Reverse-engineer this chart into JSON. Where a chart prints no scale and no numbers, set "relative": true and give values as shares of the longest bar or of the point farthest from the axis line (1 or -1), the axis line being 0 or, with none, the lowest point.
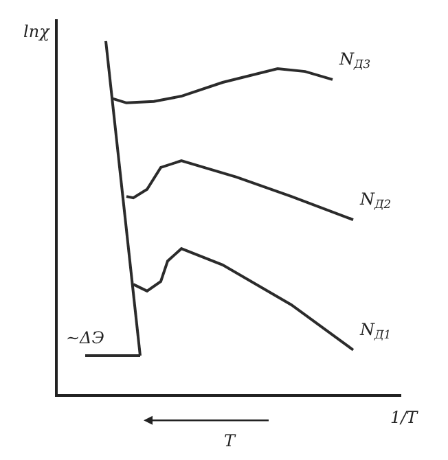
{
  "chart_data": {
    "type": "line",
    "relative": true,
    "xlabel": "1/T",
    "ylabel": "lnχ",
    "legend": false,
    "grid": false,
    "marker": "none",
    "line_style": "solid",
    "categories": [
      null,
      null,
      null,
      null,
      null,
      null,
      null,
      null,
      null,
      null,
      null,
      null,
      null,
      null,
      null,
      null,
      null,
      null,
      null,
      null,
      null,
      null,
      null,
      null,
      null,
      null,
      null,
      null,
      null,
      null,
      null,
      null,
      null,
      null,
      null,
      null,
      null,
      null,
      null,
      null,
      null,
      null,
      null,
      null,
      null,
      null,
      null,
      null,
      null,
      null,
      null
    ],
    "series": [
      {
        "color": "#2b2b2b",
        "values": [
          null,
          null,
          null,
          null,
          null,
          null,
          null,
          1.0,
          null,
          null,
          null,
          null,
          0.109,
          null,
          null,
          null,
          null,
          null,
          null,
          null,
          null,
          null,
          null,
          null,
          null,
          null,
          null,
          null,
          null,
          null,
          null,
          null,
          null,
          null,
          null,
          null,
          null,
          null,
          null,
          null,
          null,
          null,
          null,
          null,
          null,
          null,
          null,
          null,
          null,
          null,
          null
        ]
      },
      {
        "color": "#2b2b2b",
        "values": [
          null,
          null,
          null,
          null,
          0.109,
          null,
          null,
          null,
          null,
          null,
          null,
          null,
          0.109,
          null,
          null,
          null,
          null,
          null,
          null,
          null,
          null,
          null,
          null,
          null,
          null,
          null,
          null,
          null,
          null,
          null,
          null,
          null,
          null,
          null,
          null,
          null,
          null,
          null,
          null,
          null,
          null,
          null,
          null,
          null,
          null,
          null,
          null,
          null,
          null,
          null,
          null
        ]
      },
      {
        "name": "N$_{Д3}$",
        "color": "#2b2b2b",
        "values": [
          null,
          null,
          null,
          null,
          null,
          null,
          null,
          null,
          0.837,
          null,
          0.825,
          null,
          null,
          null,
          0.829,
          null,
          null,
          null,
          0.844,
          null,
          null,
          null,
          null,
          null,
          0.883,
          null,
          null,
          null,
          null,
          null,
          null,
          null,
          0.922,
          null,
          null,
          null,
          0.914,
          null,
          null,
          null,
          0.891,
          null,
          null,
          null,
          null,
          null,
          null,
          null,
          null,
          null,
          null
        ]
      },
      {
        "name": "N$_{Д2}$",
        "color": "#2b2b2b",
        "values": [
          null,
          null,
          null,
          null,
          null,
          null,
          null,
          null,
          null,
          null,
          0.56,
          0.556,
          null,
          0.58,
          null,
          0.642,
          null,
          null,
          0.661,
          null,
          null,
          null,
          null,
          null,
          null,
          null,
          0.615,
          null,
          null,
          null,
          null,
          null,
          null,
          null,
          0.56,
          null,
          null,
          null,
          null,
          null,
          null,
          null,
          null,
          0.494,
          null,
          null,
          null,
          null,
          null,
          null,
          null
        ]
      },
      {
        "name": "N$_{Д1}$",
        "color": "#2b2b2b",
        "values": [
          null,
          null,
          null,
          null,
          null,
          null,
          null,
          null,
          null,
          null,
          null,
          0.311,
          null,
          0.292,
          null,
          0.319,
          0.377,
          null,
          0.412,
          null,
          null,
          null,
          null,
          null,
          0.366,
          null,
          null,
          null,
          null,
          null,
          null,
          null,
          null,
          null,
          0.253,
          null,
          null,
          null,
          null,
          null,
          null,
          null,
          null,
          0.125,
          null,
          null,
          null,
          null,
          null,
          null,
          null
        ]
      }
    ],
    "annotations": [
      "~ΔЭ",
      "T"
    ]
  }
}
